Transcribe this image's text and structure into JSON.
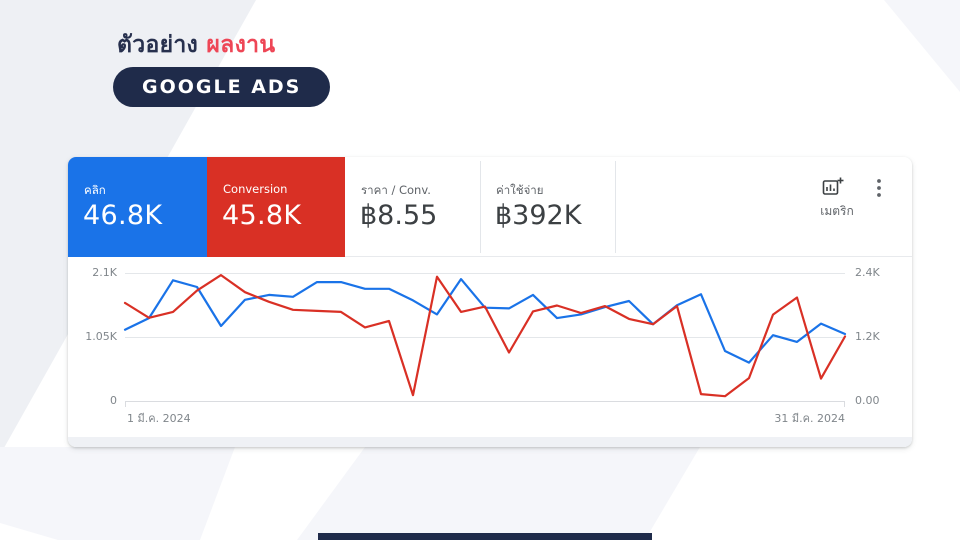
{
  "header": {
    "title_dark": "ตัวอย่าง",
    "title_accent": "ผลงาน",
    "badge_label": "GOOGLE ADS"
  },
  "scorecards": [
    {
      "label": "คลิก",
      "value": "46.8K",
      "bg": "#1a73e8",
      "text": "#ffffff"
    },
    {
      "label": "Conversion",
      "value": "45.8K",
      "bg": "#d93025",
      "text": "#ffffff"
    },
    {
      "label": "ราคา / Conv.",
      "value": "฿8.55",
      "bg": "#ffffff",
      "text": "#3c4043"
    },
    {
      "label": "ค่าใช้จ่าย",
      "value": "฿392K",
      "bg": "#ffffff",
      "text": "#3c4043"
    }
  ],
  "toolbar": {
    "metric_label": "เมตริก",
    "add_metric_icon": "bar-chart-plus",
    "menu_icon": "kebab-vertical"
  },
  "chart_data": {
    "type": "line",
    "x_start_label": "1 มี.ค. 2024",
    "x_end_label": "31 มี.ค. 2024",
    "x_points": "daily values, 1–31 March 2024 (31 points)",
    "grid": "horizontal gridlines only",
    "legend_position": "none (colors match scorecards)",
    "left_axis": {
      "ticks": [
        "2.1K",
        "1.05K",
        "0"
      ],
      "max": 2.1,
      "min": 0
    },
    "right_axis": {
      "ticks": [
        "2.4K",
        "1.2K",
        "0.00"
      ],
      "max": 2.4,
      "min": 0
    },
    "series": [
      {
        "name": "คลิก (clicks)",
        "color": "#1a73e8",
        "axis": "left",
        "unit": "K",
        "values": [
          1.17,
          1.36,
          1.98,
          1.87,
          1.23,
          1.66,
          1.74,
          1.71,
          1.95,
          1.95,
          1.84,
          1.84,
          1.65,
          1.42,
          2.0,
          1.53,
          1.52,
          1.74,
          1.36,
          1.42,
          1.54,
          1.64,
          1.26,
          1.57,
          1.75,
          0.82,
          0.63,
          1.08,
          0.97,
          1.27,
          1.1
        ]
      },
      {
        "name": "Conversion",
        "color": "#d93025",
        "axis": "right",
        "unit": "K",
        "values": [
          1.84,
          1.56,
          1.67,
          2.07,
          2.36,
          2.04,
          1.86,
          1.71,
          1.69,
          1.67,
          1.38,
          1.5,
          0.11,
          2.33,
          1.67,
          1.77,
          0.91,
          1.68,
          1.79,
          1.65,
          1.78,
          1.54,
          1.44,
          1.78,
          0.13,
          0.09,
          0.43,
          1.62,
          1.94,
          0.42,
          1.21
        ]
      }
    ]
  },
  "colors": {
    "brand_navy": "#1f2b4a",
    "accent_red": "#ee4656",
    "google_blue": "#1a73e8",
    "google_red": "#d93025",
    "gridline": "#e4e7ea",
    "axis_text": "#80868b"
  }
}
